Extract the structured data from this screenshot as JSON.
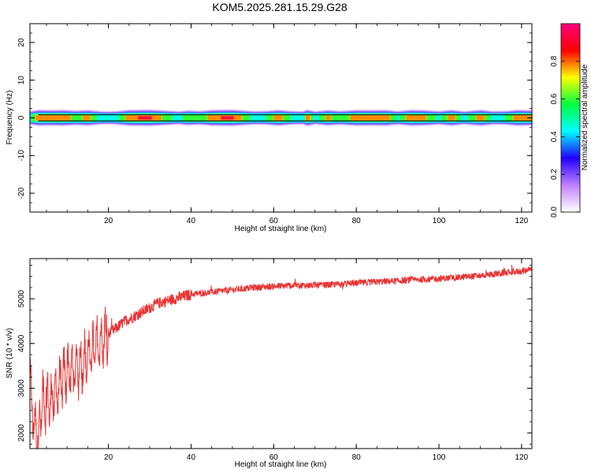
{
  "page": {
    "title": "KOM5.2025.281.15.29.G28"
  },
  "chart_data": [
    {
      "type": "heatmap",
      "xlabel": "Height of straight line (km)",
      "ylabel": "Frequency (Hz)",
      "xlim": [
        1,
        122.5
      ],
      "ylim": [
        -25,
        25
      ],
      "xticks": [
        20,
        40,
        60,
        80,
        100,
        120
      ],
      "yticks": [
        -20,
        -10,
        0,
        10,
        20
      ],
      "band_center_hz": 0,
      "band_halfwidth_hz": 0.8,
      "colorbar": {
        "label": "Normalized spectral amplitude",
        "range": [
          0,
          1
        ],
        "ticks": [
          0.0,
          0.2,
          0.4,
          0.6,
          0.8
        ],
        "colors": [
          "#ffffff",
          "#c080ff",
          "#2000ff",
          "#00ffff",
          "#00ff40",
          "#ffff00",
          "#ff0000",
          "#ff0080"
        ]
      },
      "peak_intensity_profile": {
        "x": [
          1,
          3,
          6,
          9,
          12,
          15,
          18,
          20,
          22,
          25,
          30,
          34,
          37,
          39,
          42,
          45,
          50,
          55,
          58,
          61,
          64,
          67,
          68,
          70,
          73,
          76,
          80,
          84,
          87,
          90,
          93,
          96,
          100,
          103,
          106,
          110,
          113,
          116,
          119,
          122.5
        ],
        "values": [
          0.55,
          0.9,
          0.85,
          0.9,
          0.7,
          0.85,
          0.5,
          0.45,
          0.55,
          0.9,
          0.95,
          0.7,
          0.5,
          0.75,
          0.6,
          0.9,
          0.95,
          0.55,
          0.6,
          0.9,
          0.6,
          0.5,
          0.95,
          0.5,
          0.85,
          0.6,
          0.9,
          0.85,
          0.9,
          0.55,
          0.9,
          0.85,
          0.55,
          0.9,
          0.5,
          0.9,
          0.55,
          0.6,
          0.9,
          0.8
        ]
      }
    },
    {
      "type": "line",
      "xlabel": "Height of straight line (km)",
      "ylabel": "SNR (10 * v/v)",
      "xlim": [
        1,
        122.5
      ],
      "ylim": [
        1650,
        5900
      ],
      "xticks": [
        20,
        40,
        60,
        80,
        100,
        120
      ],
      "yticks": [
        2000,
        3000,
        4000,
        5000
      ],
      "color": "#e83232",
      "trend": {
        "x": [
          1,
          2,
          3,
          4,
          6,
          8,
          10,
          12,
          14,
          16,
          18,
          20,
          22,
          24,
          26,
          28,
          30,
          32,
          34,
          36,
          38,
          40,
          45,
          50,
          55,
          60,
          65,
          70,
          75,
          80,
          85,
          90,
          95,
          100,
          105,
          110,
          115,
          120,
          122.5
        ],
        "values": [
          3000,
          2200,
          1900,
          2700,
          2700,
          3000,
          3400,
          3400,
          3600,
          3800,
          4000,
          4200,
          4350,
          4500,
          4600,
          4700,
          4800,
          4900,
          4950,
          5000,
          5050,
          5100,
          5150,
          5200,
          5250,
          5280,
          5300,
          5300,
          5320,
          5350,
          5380,
          5400,
          5430,
          5450,
          5480,
          5520,
          5570,
          5620,
          5650
        ]
      }
    }
  ]
}
